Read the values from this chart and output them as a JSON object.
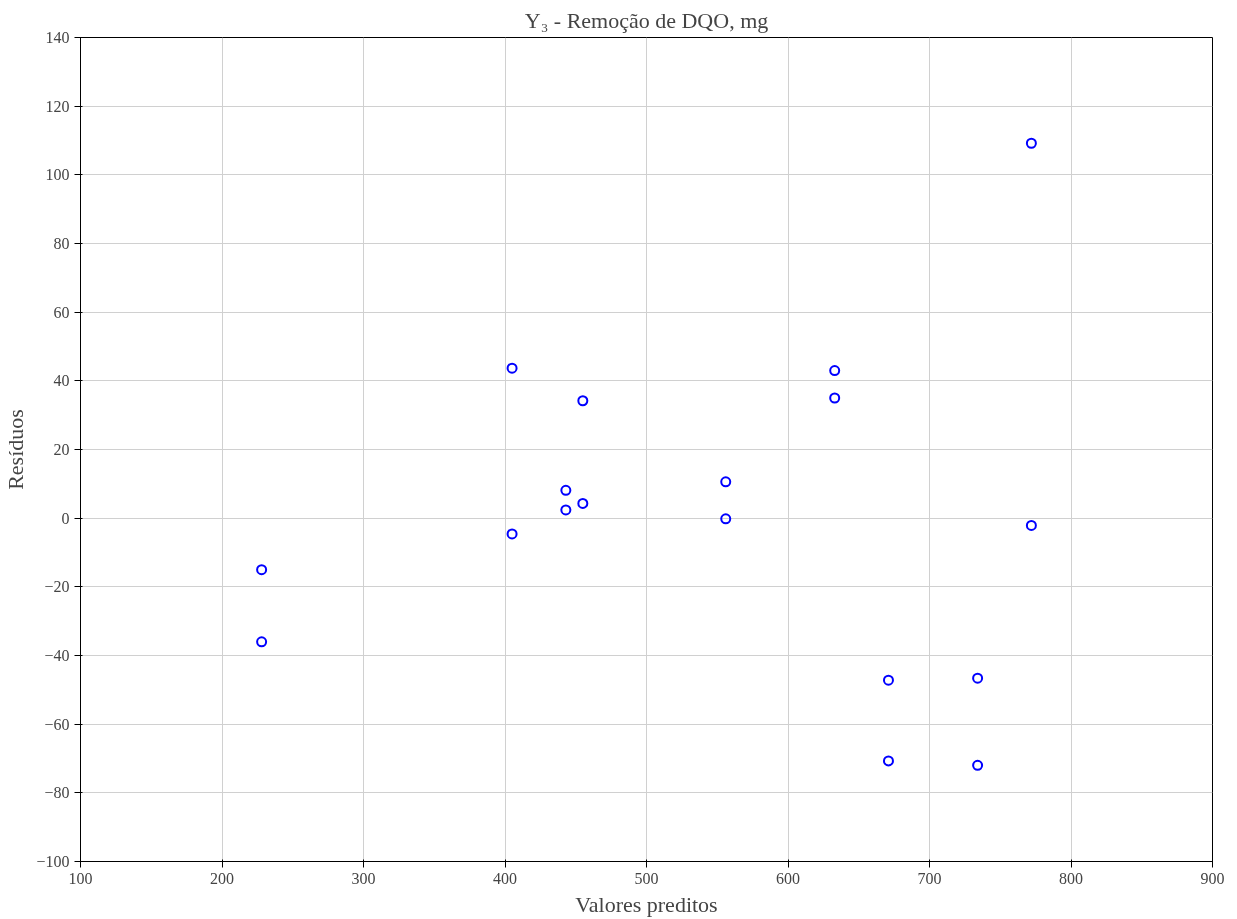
{
  "chart_data": {
    "type": "scatter",
    "title": "Y₃ - Remoção de DQO, mg",
    "xlabel": "Valores preditos",
    "ylabel": "Resíduos",
    "x": [
      228,
      228,
      405,
      405,
      455,
      455,
      443,
      443,
      556,
      556,
      633,
      633,
      671,
      671,
      734,
      734,
      772,
      772
    ],
    "series": [
      {
        "color": "#0000ff",
        "values": [
          -15,
          -36,
          43.7,
          -4.6,
          34.2,
          4.3,
          8.1,
          2.4,
          10.6,
          -0.2,
          43,
          35,
          -47.2,
          -70.7,
          -46.6,
          -72,
          109.2,
          -2.1
        ]
      }
    ],
    "xlim": [
      100,
      900
    ],
    "xticks": [
      100,
      200,
      300,
      400,
      500,
      600,
      700,
      800,
      900
    ],
    "ylim": [
      -100,
      140
    ],
    "yticks": [
      -100,
      -80,
      -60,
      -40,
      -20,
      0,
      20,
      40,
      60,
      80,
      100,
      120,
      140
    ],
    "grid": true,
    "marker": "circle"
  }
}
